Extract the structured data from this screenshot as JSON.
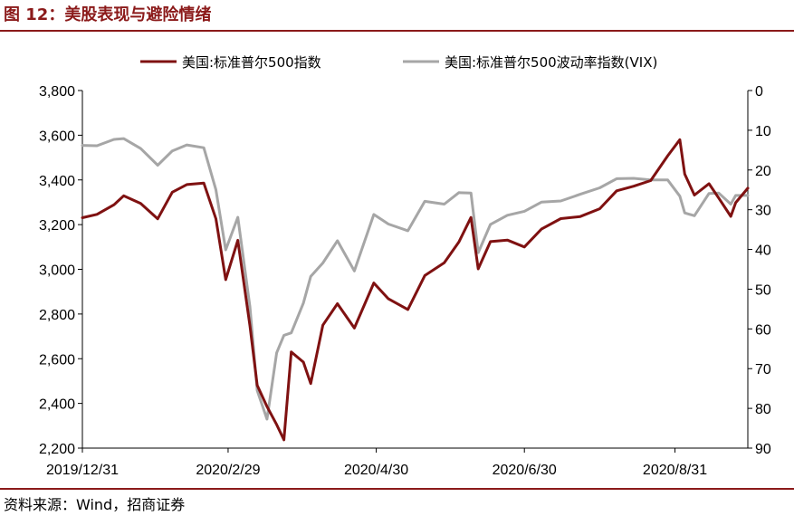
{
  "figure_title": "图 12：美股表现与避险情绪",
  "source_note": "资料来源：Wind，招商证券",
  "colors": {
    "accent": "#8B1A1A",
    "spx": "#7F1111",
    "vix": "#A6A6A6",
    "axis": "#000000"
  },
  "chart_data": {
    "type": "line",
    "title": "",
    "x_tick_labels": [
      "2019/12/31",
      "2020/2/29",
      "2020/4/30",
      "2020/6/30",
      "2020/8/31"
    ],
    "y_left": {
      "ylim": [
        2200,
        3800
      ],
      "ticks": [
        "2,200",
        "2,400",
        "2,600",
        "2,800",
        "3,000",
        "3,200",
        "3,400",
        "3,600",
        "3,800"
      ]
    },
    "y_right": {
      "ylim": [
        90,
        0
      ],
      "inverted": true,
      "ticks": [
        "0",
        "10",
        "20",
        "30",
        "40",
        "50",
        "60",
        "70",
        "80",
        "90"
      ]
    },
    "grid": false,
    "legend_position": "top",
    "series": [
      {
        "name": "美国:标准普尔500指数",
        "axis": "left",
        "color": "#7F1111",
        "x": [
          "2019-12-31",
          "2020-01-06",
          "2020-01-13",
          "2020-01-17",
          "2020-01-24",
          "2020-01-31",
          "2020-02-06",
          "2020-02-12",
          "2020-02-19",
          "2020-02-24",
          "2020-02-28",
          "2020-03-04",
          "2020-03-09",
          "2020-03-12",
          "2020-03-16",
          "2020-03-20",
          "2020-03-23",
          "2020-03-26",
          "2020-03-31",
          "2020-04-03",
          "2020-04-08",
          "2020-04-14",
          "2020-04-21",
          "2020-04-29",
          "2020-05-05",
          "2020-05-13",
          "2020-05-20",
          "2020-05-28",
          "2020-06-03",
          "2020-06-08",
          "2020-06-11",
          "2020-06-16",
          "2020-06-23",
          "2020-06-30",
          "2020-07-07",
          "2020-07-15",
          "2020-07-23",
          "2020-07-31",
          "2020-08-07",
          "2020-08-14",
          "2020-08-21",
          "2020-08-28",
          "2020-09-02",
          "2020-09-04",
          "2020-09-08",
          "2020-09-14",
          "2020-09-18",
          "2020-09-23",
          "2020-09-25",
          "2020-09-30"
        ],
        "values": [
          3231,
          3246,
          3289,
          3329,
          3295,
          3226,
          3345,
          3379,
          3386,
          3226,
          2954,
          3130,
          2746,
          2481,
          2386,
          2305,
          2237,
          2630,
          2585,
          2489,
          2750,
          2846,
          2737,
          2939,
          2868,
          2820,
          2972,
          3029,
          3122,
          3232,
          3002,
          3124,
          3131,
          3100,
          3180,
          3227,
          3236,
          3271,
          3351,
          3372,
          3397,
          3508,
          3580,
          3426,
          3332,
          3383,
          3319,
          3237,
          3298,
          3363
        ]
      },
      {
        "name": "美国:标准普尔500波动率指数(VIX)",
        "axis": "right",
        "color": "#A6A6A6",
        "x": [
          "2019-12-31",
          "2020-01-06",
          "2020-01-13",
          "2020-01-17",
          "2020-01-24",
          "2020-01-31",
          "2020-02-06",
          "2020-02-12",
          "2020-02-19",
          "2020-02-24",
          "2020-02-28",
          "2020-03-04",
          "2020-03-09",
          "2020-03-12",
          "2020-03-16",
          "2020-03-20",
          "2020-03-23",
          "2020-03-26",
          "2020-03-31",
          "2020-04-03",
          "2020-04-08",
          "2020-04-14",
          "2020-04-21",
          "2020-04-29",
          "2020-05-05",
          "2020-05-13",
          "2020-05-20",
          "2020-05-28",
          "2020-06-03",
          "2020-06-08",
          "2020-06-11",
          "2020-06-16",
          "2020-06-23",
          "2020-06-30",
          "2020-07-07",
          "2020-07-15",
          "2020-07-23",
          "2020-07-31",
          "2020-08-07",
          "2020-08-14",
          "2020-08-21",
          "2020-08-28",
          "2020-09-02",
          "2020-09-04",
          "2020-09-08",
          "2020-09-14",
          "2020-09-18",
          "2020-09-23",
          "2020-09-25",
          "2020-09-30"
        ],
        "values": [
          13.8,
          13.9,
          12.3,
          12.1,
          14.6,
          18.8,
          15.2,
          13.7,
          14.4,
          25.0,
          40.1,
          31.9,
          54.5,
          75.5,
          82.7,
          66.0,
          61.6,
          61.0,
          53.5,
          46.8,
          43.4,
          37.8,
          45.4,
          31.2,
          33.6,
          35.3,
          27.9,
          28.6,
          25.7,
          25.8,
          40.8,
          33.7,
          31.4,
          30.4,
          28.1,
          27.8,
          26.1,
          24.5,
          22.2,
          22.1,
          22.5,
          22.5,
          26.6,
          30.8,
          31.5,
          25.9,
          25.8,
          28.6,
          26.4,
          26.4
        ]
      }
    ]
  }
}
